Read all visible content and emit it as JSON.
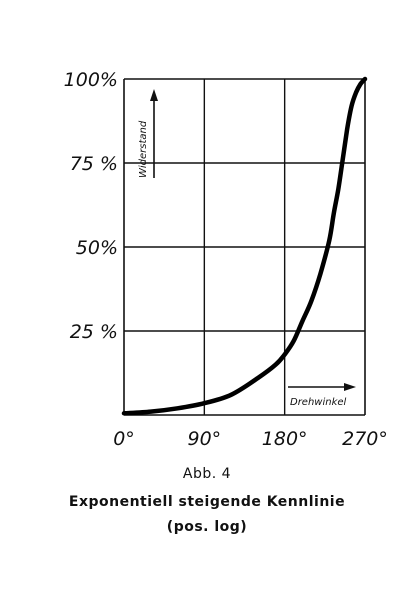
{
  "chart_data": {
    "type": "line",
    "xlabel": "Drehwinkel",
    "ylabel": "Widerstand",
    "xlim": [
      0,
      270
    ],
    "ylim": [
      0,
      100
    ],
    "x_ticks": [
      "0°",
      "90°",
      "180°",
      "270°"
    ],
    "y_ticks": [
      "100%",
      "75 %",
      "50%",
      "25 %"
    ],
    "x_tick_values": [
      0,
      90,
      180,
      270
    ],
    "y_tick_values": [
      100,
      75,
      50,
      25
    ],
    "grid": true,
    "series": [
      {
        "x": [
          0,
          30,
          60,
          90,
          120,
          150,
          170,
          180,
          190,
          200,
          210,
          220,
          230,
          235,
          240,
          245,
          250,
          255,
          260,
          265,
          270
        ],
        "values": [
          0.5,
          1,
          2,
          3.5,
          6,
          11,
          15,
          18,
          22,
          28,
          34,
          42,
          52,
          60,
          67,
          76,
          85,
          92,
          96,
          98.5,
          100
        ]
      }
    ]
  },
  "caption": {
    "figure_number": "Abb. 4",
    "title": "Exponentiell steigende Kennlinie",
    "subtitle": "(pos. log)"
  }
}
